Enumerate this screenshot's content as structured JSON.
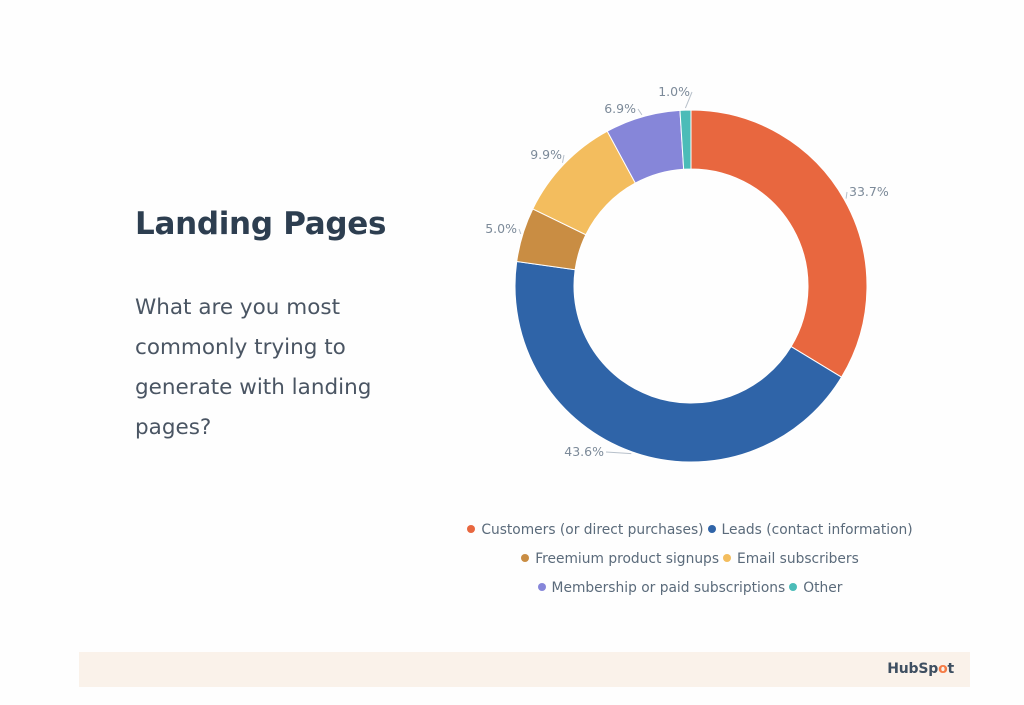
{
  "slide": {
    "title": "Landing Pages",
    "question": "What are you most commonly trying to generate with landing pages?"
  },
  "footer": {
    "logo_text_a": "HubSp",
    "logo_text_o": "o",
    "logo_text_b": "t",
    "logo_icon": "sprocket-icon"
  },
  "legend": {
    "rows": [
      [
        {
          "label": "Customers (or direct purchases)",
          "color": "#e8673f"
        },
        {
          "label": "Leads (contact information)",
          "color": "#2f64a8"
        }
      ],
      [
        {
          "label": "Freemium product signups",
          "color": "#c98d43"
        },
        {
          "label": "Email subscribers",
          "color": "#f3bd5e"
        }
      ],
      [
        {
          "label": "Membership or paid subscriptions",
          "color": "#8686d9"
        },
        {
          "label": "Other",
          "color": "#4bbcb8"
        }
      ]
    ]
  },
  "chart_data": {
    "type": "pie",
    "subtype": "donut",
    "title": "Landing Pages",
    "subtitle": "What are you most commonly trying to generate with landing pages?",
    "categories": [
      "Customers (or direct purchases)",
      "Leads (contact information)",
      "Freemium product signups",
      "Email subscribers",
      "Membership or paid subscriptions",
      "Other"
    ],
    "values": [
      33.7,
      43.6,
      5.0,
      9.9,
      6.9,
      1.0
    ],
    "labels": [
      "33.7%",
      "43.6%",
      "5.0%",
      "9.9%",
      "6.9%",
      "1.0%"
    ],
    "colors": [
      "#e8673f",
      "#2f64a8",
      "#c98d43",
      "#f3bd5e",
      "#8686d9",
      "#4bbcb8"
    ],
    "start_angle_deg": 0,
    "direction": "clockwise",
    "legend_position": "bottom",
    "unit": "%"
  }
}
